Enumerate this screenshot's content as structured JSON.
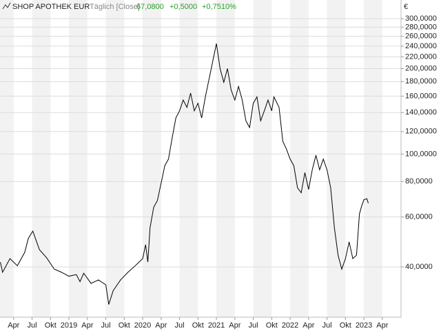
{
  "chart_data": {
    "type": "line",
    "title": "SHOP APOTHEK EUR",
    "subtitle": "Täglich [Close]",
    "last_value": "67,0800",
    "change": "+0,5000",
    "change_pct": "+0,7510%",
    "y_unit": "€",
    "log_y": true,
    "grid": true,
    "x": [
      2018.07,
      2018.1,
      2018.2,
      2018.3,
      2018.4,
      2018.45,
      2018.51,
      2018.55,
      2018.6,
      2018.7,
      2018.8,
      2018.9,
      2019.0,
      2019.1,
      2019.15,
      2019.2,
      2019.3,
      2019.4,
      2019.5,
      2019.54,
      2019.6,
      2019.7,
      2019.8,
      2019.9,
      2020.0,
      2020.04,
      2020.07,
      2020.1,
      2020.15,
      2020.2,
      2020.3,
      2020.35,
      2020.4,
      2020.45,
      2020.5,
      2020.55,
      2020.6,
      2020.65,
      2020.7,
      2020.75,
      2020.8,
      2020.85,
      2020.93,
      2021.0,
      2021.05,
      2021.1,
      2021.15,
      2021.2,
      2021.25,
      2021.3,
      2021.35,
      2021.4,
      2021.45,
      2021.5,
      2021.55,
      2021.6,
      2021.65,
      2021.7,
      2021.75,
      2021.78,
      2021.85,
      2021.9,
      2021.95,
      2022.0,
      2022.05,
      2022.1,
      2022.15,
      2022.2,
      2022.25,
      2022.3,
      2022.35,
      2022.4,
      2022.45,
      2022.5,
      2022.55,
      2022.6,
      2022.65,
      2022.7,
      2022.75,
      2022.8,
      2022.85,
      2022.9,
      2022.94,
      2022.97,
      2023.0,
      2023.04,
      2023.06
    ],
    "series": [
      {
        "name": "SHOP APOTHEK EUR",
        "color": "#000000",
        "values": [
          41.6,
          38.3,
          42.8,
          40.4,
          45,
          50.5,
          53.5,
          50,
          46,
          43,
          39.3,
          38.3,
          37.1,
          37.6,
          35.5,
          38,
          35,
          36,
          34.6,
          29.5,
          33,
          36,
          38.3,
          40.4,
          42.8,
          47.9,
          41.6,
          55,
          65,
          68.6,
          91,
          96,
          114,
          134,
          142,
          155,
          146,
          164,
          142,
          151,
          134,
          159,
          200,
          245,
          200,
          179,
          200,
          168,
          155,
          173,
          155,
          131,
          124,
          151,
          159,
          131,
          142,
          155,
          142,
          159,
          146,
          111,
          104,
          96,
          91,
          76,
          73,
          86,
          75,
          88,
          99,
          88,
          96,
          88,
          76,
          55,
          44,
          39.3,
          42.8,
          49,
          42.8,
          44,
          61.5,
          65.6,
          69,
          69.6,
          67.08
        ]
      }
    ],
    "xlim": [
      2018.065,
      2023.504
    ],
    "xticks": [
      {
        "value": 2018.25,
        "label": "Apr"
      },
      {
        "value": 2018.5,
        "label": "Jul"
      },
      {
        "value": 2018.75,
        "label": "Okt"
      },
      {
        "value": 2019.0,
        "label": "2019"
      },
      {
        "value": 2019.25,
        "label": "Apr"
      },
      {
        "value": 2019.5,
        "label": "Jul"
      },
      {
        "value": 2019.75,
        "label": "Okt"
      },
      {
        "value": 2020.0,
        "label": "2020"
      },
      {
        "value": 2020.25,
        "label": "Apr"
      },
      {
        "value": 2020.5,
        "label": "Jul"
      },
      {
        "value": 2020.75,
        "label": "Okt"
      },
      {
        "value": 2021.0,
        "label": "2021"
      },
      {
        "value": 2021.25,
        "label": "Apr"
      },
      {
        "value": 2021.5,
        "label": "Jul"
      },
      {
        "value": 2021.75,
        "label": "Okt"
      },
      {
        "value": 2022.0,
        "label": "2022"
      },
      {
        "value": 2022.25,
        "label": "Apr"
      },
      {
        "value": 2022.5,
        "label": "Jul"
      },
      {
        "value": 2022.75,
        "label": "Okt"
      },
      {
        "value": 2023.0,
        "label": "2023"
      },
      {
        "value": 2023.25,
        "label": "Apr"
      }
    ],
    "ylim": [
      26.6,
      349
    ],
    "yticks": [
      {
        "value": 40,
        "label": "40,0000"
      },
      {
        "value": 60,
        "label": "60,0000"
      },
      {
        "value": 80,
        "label": "80,0000"
      },
      {
        "value": 100,
        "label": "100,0000"
      },
      {
        "value": 120,
        "label": "120,0000"
      },
      {
        "value": 140,
        "label": "140,0000"
      },
      {
        "value": 160,
        "label": "160,0000"
      },
      {
        "value": 180,
        "label": "180,0000"
      },
      {
        "value": 200,
        "label": "200,0000"
      },
      {
        "value": 220,
        "label": "220,0000"
      },
      {
        "value": 240,
        "label": "240,0000"
      },
      {
        "value": 260,
        "label": "260,0000"
      },
      {
        "value": 280,
        "label": "280,0000"
      },
      {
        "value": 300,
        "label": "300,0000"
      }
    ]
  }
}
